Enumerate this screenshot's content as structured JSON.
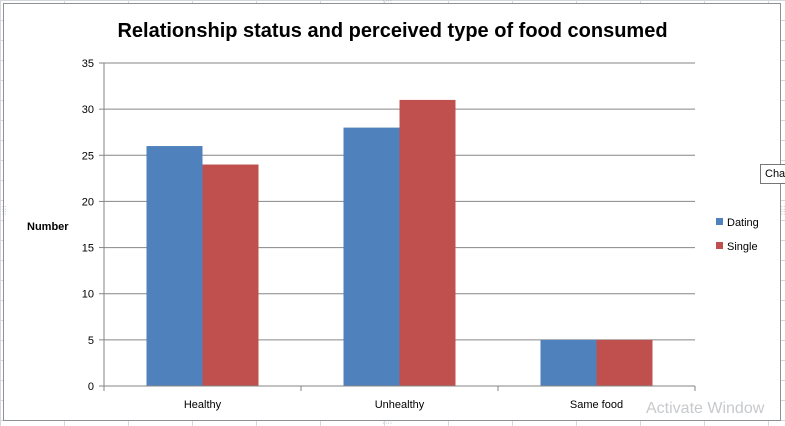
{
  "chart_data": {
    "type": "bar",
    "title": "Relationship status and perceived type of food consumed",
    "xlabel": "",
    "ylabel": "Number",
    "categories": [
      "Healthy",
      "Unhealthy",
      "Same food"
    ],
    "series": [
      {
        "name": "Dating",
        "values": [
          26,
          28,
          5
        ],
        "color": "#4f81bd"
      },
      {
        "name": "Single",
        "values": [
          24,
          31,
          5
        ],
        "color": "#c0504d"
      }
    ],
    "ylim": [
      0,
      35
    ],
    "yticks": [
      0,
      5,
      10,
      15,
      20,
      25,
      30,
      35
    ],
    "grid": true,
    "legend_position": "right"
  },
  "overlay": {
    "tooltip_text": "Cha",
    "watermark_text": "Activate Window"
  },
  "handle_glyph": "∷∷"
}
